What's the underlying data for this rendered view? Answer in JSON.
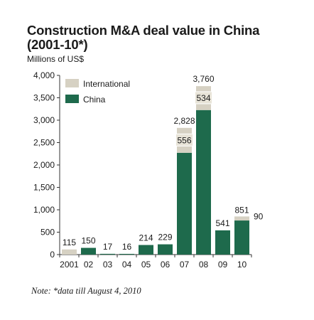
{
  "chart_data": {
    "type": "bar",
    "stacked": true,
    "title_line1": "Construction M&A deal value in China",
    "title_line2": "(2001-10*)",
    "ylabel": "Millions of US$",
    "xlabel": "",
    "categories": [
      "2001",
      "02",
      "03",
      "04",
      "05",
      "06",
      "07",
      "08",
      "09",
      "10"
    ],
    "series": [
      {
        "name": "China",
        "color": "#1e6a4c",
        "values": [
          0,
          150,
          17,
          16,
          214,
          229,
          2272,
          3226,
          541,
          761
        ]
      },
      {
        "name": "International",
        "color": "#d6d1c3",
        "values": [
          115,
          0,
          0,
          0,
          0,
          0,
          556,
          534,
          0,
          90
        ]
      }
    ],
    "totals": [
      115,
      150,
      17,
      16,
      214,
      229,
      2828,
      3760,
      541,
      851
    ],
    "total_labels": [
      "115",
      "150",
      "17",
      "16",
      "214",
      "229",
      "2,828",
      "3,760",
      "541",
      "851"
    ],
    "intl_labels": [
      "",
      "",
      "",
      "",
      "",
      "",
      "556",
      "534",
      "",
      "90"
    ],
    "ylim": [
      0,
      4000
    ],
    "yticks": [
      0,
      500,
      1000,
      1500,
      2000,
      2500,
      3000,
      3500,
      4000
    ],
    "ytick_labels": [
      "0",
      "500",
      "1,000",
      "1,500",
      "2,000",
      "2,500",
      "3,000",
      "3,500",
      "4,000"
    ],
    "legend": {
      "position": "top-left",
      "entries": [
        "International",
        "China"
      ]
    },
    "grid": false
  },
  "note": "Note: *data till August 4, 2010"
}
